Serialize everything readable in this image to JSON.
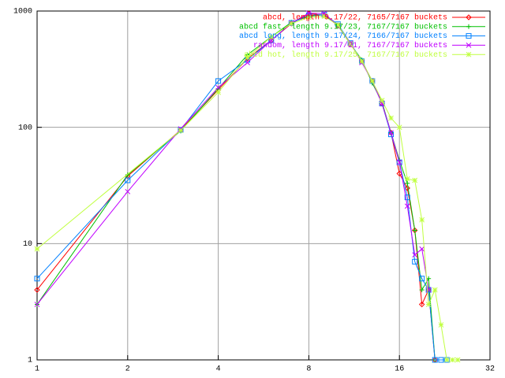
{
  "chart_data": {
    "type": "line",
    "xscale": "log",
    "yscale": "log",
    "xlim": [
      1,
      32
    ],
    "ylim": [
      1,
      1000
    ],
    "xticks": [
      1,
      2,
      4,
      8,
      16,
      32
    ],
    "yticks": [
      1,
      10,
      100,
      1000
    ],
    "grid": true,
    "legend": "top-right",
    "series": [
      {
        "name": "abcd, length 9.17/22, 7165/7167 buckets",
        "color": "#ff0000",
        "marker": "diamond",
        "x": [
          1,
          2,
          3,
          4,
          5,
          6,
          7,
          8,
          9,
          10,
          11,
          12,
          13,
          14,
          15,
          16,
          17,
          18,
          19,
          20,
          21
        ],
        "values": [
          4,
          38,
          95,
          210,
          390,
          560,
          780,
          950,
          920,
          750,
          520,
          370,
          250,
          160,
          90,
          40,
          30,
          13,
          3,
          4,
          1
        ]
      },
      {
        "name": "abcd fast, length 9.17/23, 7167/7167 buckets",
        "color": "#00c000",
        "marker": "plus",
        "x": [
          1,
          2,
          3,
          4,
          5,
          6,
          7,
          8,
          9,
          10,
          11,
          12,
          13,
          14,
          15,
          16,
          17,
          18,
          19,
          20,
          21
        ],
        "values": [
          3,
          39,
          93,
          215,
          420,
          600,
          800,
          900,
          930,
          750,
          520,
          380,
          240,
          165,
          90,
          52,
          33,
          13,
          4,
          5,
          1
        ]
      },
      {
        "name": "abcd long, length 9.17/24, 7166/7167 buckets",
        "color": "#0080ff",
        "marker": "square",
        "x": [
          1,
          2,
          3,
          4,
          5,
          6,
          7,
          8,
          9,
          10,
          11,
          12,
          13,
          14,
          15,
          16,
          17,
          18,
          19,
          20,
          21,
          22,
          23
        ],
        "values": [
          5,
          35,
          95,
          250,
          380,
          560,
          790,
          920,
          930,
          770,
          530,
          370,
          250,
          160,
          87,
          50,
          25,
          7,
          5,
          4,
          1,
          1,
          1
        ]
      },
      {
        "name": "random, length 9.17/21, 7167/7167 buckets",
        "color": "#c000ff",
        "marker": "cross",
        "x": [
          1,
          2,
          3,
          4,
          5,
          6,
          7,
          8,
          9,
          10,
          11,
          12,
          13,
          14,
          15,
          16,
          17,
          18,
          19,
          20
        ],
        "values": [
          3,
          28,
          97,
          220,
          360,
          560,
          790,
          960,
          950,
          750,
          530,
          360,
          250,
          160,
          90,
          50,
          21,
          8,
          9,
          4
        ]
      },
      {
        "name": "abcd hot, length 9.17/25, 7167/7167 buckets",
        "color": "#c0ff40",
        "marker": "star",
        "x": [
          1,
          3,
          4,
          5,
          6,
          7,
          8,
          9,
          10,
          11,
          12,
          13,
          14,
          15,
          16,
          17,
          18,
          19,
          20,
          21,
          22,
          23,
          24,
          25
        ],
        "values": [
          9,
          94,
          200,
          400,
          600,
          780,
          880,
          900,
          760,
          520,
          370,
          250,
          170,
          120,
          100,
          36,
          35,
          16,
          3,
          4,
          2,
          1,
          1,
          1
        ]
      }
    ]
  }
}
